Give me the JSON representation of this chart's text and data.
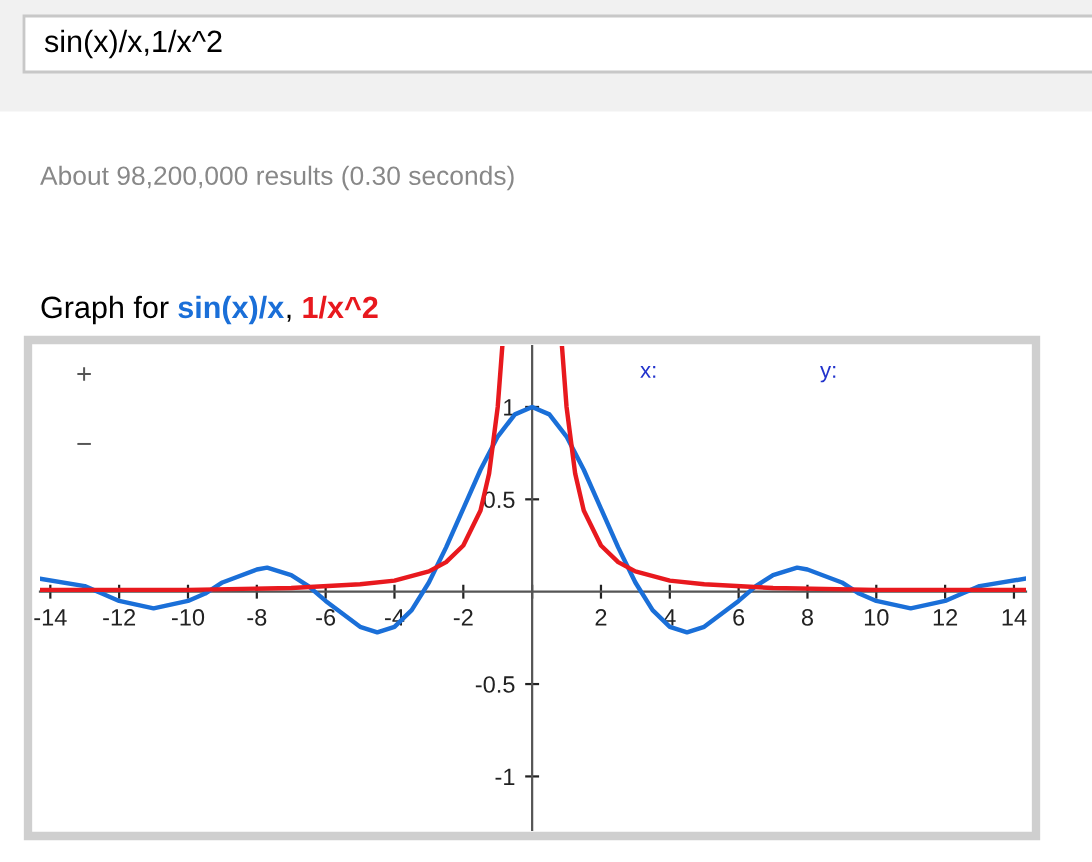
{
  "chart_data": {
    "type": "line",
    "title": "Graph for",
    "annotations": [
      "sin(x)/x,1/x^2",
      "About 98,200,000 results (0.30 seconds)",
      "x:",
      "y:",
      "+",
      "−",
      ","
    ],
    "series": [
      {
        "name": "sin(x)/x",
        "color": "#1a6fd8",
        "x": [
          -14.3,
          -13,
          -12.5,
          -12,
          -11,
          -10,
          -9.5,
          -9,
          -8,
          -7.7,
          -7,
          -6.5,
          -6,
          -5,
          -4.5,
          -4,
          -3.5,
          -3,
          -2.5,
          -2,
          -1.5,
          -1,
          -0.5,
          0,
          0.5,
          1,
          1.5,
          2,
          2.5,
          3,
          3.5,
          4,
          4.5,
          5,
          6,
          6.5,
          7,
          7.7,
          8,
          9,
          9.5,
          10,
          11,
          12,
          12.5,
          13,
          14.3
        ],
        "values": [
          0.07,
          0.03,
          -0.01,
          -0.05,
          -0.09,
          -0.05,
          -0.01,
          0.05,
          0.12,
          0.13,
          0.09,
          0.03,
          -0.05,
          -0.19,
          -0.22,
          -0.19,
          -0.1,
          0.05,
          0.24,
          0.45,
          0.66,
          0.84,
          0.96,
          1,
          0.96,
          0.84,
          0.66,
          0.45,
          0.24,
          0.05,
          -0.1,
          -0.19,
          -0.22,
          -0.19,
          -0.05,
          0.03,
          0.09,
          0.13,
          0.12,
          0.05,
          -0.01,
          -0.05,
          -0.09,
          -0.05,
          -0.01,
          0.03,
          0.07
        ]
      },
      {
        "name": "1/x^2",
        "color": "#e8191e",
        "x": [
          -14.3,
          -10,
          -7,
          -5,
          -4,
          -3,
          -2.5,
          -2,
          -1.5,
          -1.25,
          -1,
          -0.87,
          0,
          0.87,
          1,
          1.25,
          1.5,
          2,
          2.5,
          3,
          4,
          5,
          7,
          10,
          14.3
        ],
        "values": [
          0.01,
          0.01,
          0.02,
          0.04,
          0.06,
          0.11,
          0.16,
          0.25,
          0.44,
          0.64,
          1,
          1.32,
          null,
          1.32,
          1,
          0.64,
          0.44,
          0.25,
          0.16,
          0.11,
          0.06,
          0.04,
          0.02,
          0.01,
          0.01
        ]
      }
    ],
    "xlim": [
      -14.3,
      14.35
    ],
    "ylim": [
      -1.29,
      1.33
    ],
    "xticks": [
      -14,
      -12,
      -10,
      -8,
      -6,
      -4,
      -2,
      {
        "value": 0,
        "label": null
      },
      2,
      4,
      6,
      8,
      10,
      12,
      14
    ],
    "yticks": [
      -1,
      -0.5,
      0.5,
      1
    ],
    "grid": false,
    "legend": false,
    "marker": "none",
    "line_style": "solid"
  }
}
